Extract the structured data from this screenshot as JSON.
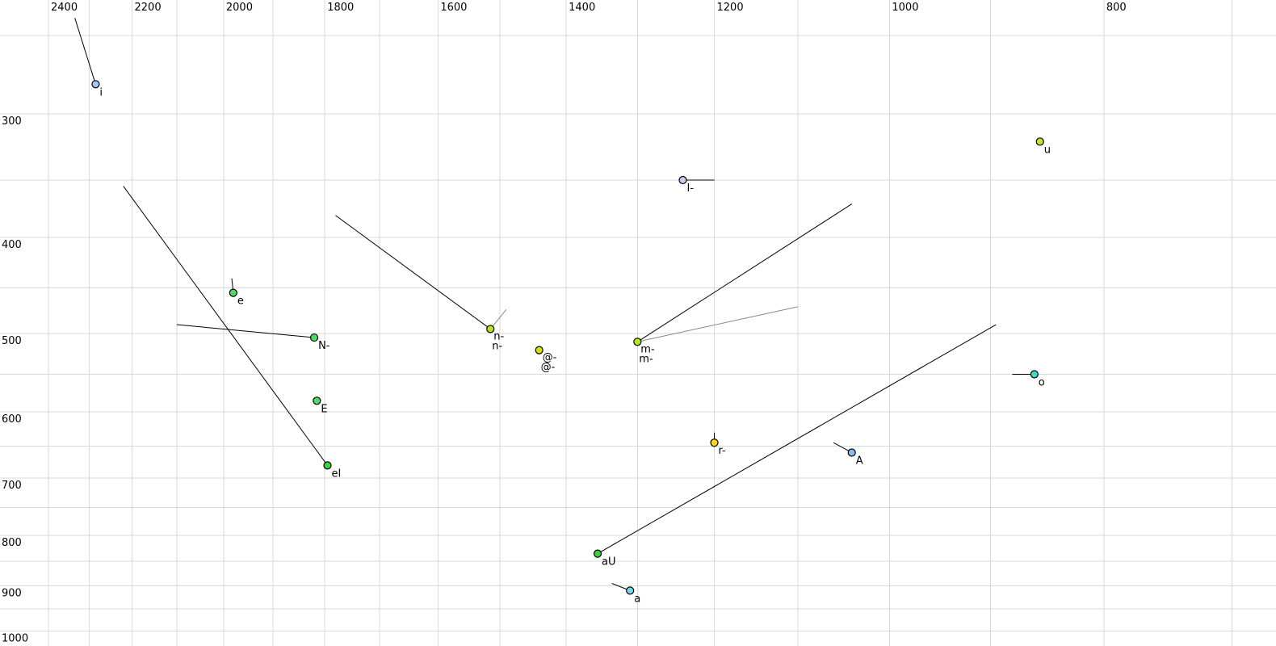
{
  "chart_data": {
    "type": "scatter",
    "title": "",
    "layout_hints": {
      "grid": "on",
      "legend": "none",
      "x_axis_position": "top",
      "y_axis_position": "left",
      "marker": "small circle with black outline",
      "tails": "line segments from each point showing formant movement"
    },
    "x_axis": {
      "unit": "Hz",
      "scale": "log",
      "reversed": true,
      "labeled_ticks": [
        2400,
        2200,
        2000,
        1800,
        1600,
        1400,
        1200,
        1000,
        800
      ],
      "gridline_step_hz": 100,
      "gridline_min_hz": 700,
      "gridline_max_hz": 2400
    },
    "y_axis": {
      "unit": "Hz",
      "scale": "log",
      "increases_downward": true,
      "labeled_ticks": [
        300,
        400,
        500,
        600,
        700,
        800,
        900,
        1000
      ],
      "gridline_step_hz": 50,
      "gridline_min_hz": 250,
      "gridline_max_hz": 1000
    },
    "grid_color": "#d9d9d9",
    "gray_label_color": "#8b90ae",
    "points": [
      {
        "name": "i",
        "f2": 2285,
        "f1": 280,
        "fill": "#a3c7ef",
        "labels": [
          {
            "text": "i",
            "color": "#000000"
          }
        ],
        "tails": [
          {
            "f2": 2335,
            "f1": 240,
            "color": "#000000"
          }
        ]
      },
      {
        "name": "u",
        "f2": 855,
        "f1": 320,
        "fill": "#c2e42c",
        "labels": [
          {
            "text": "u",
            "color": "#000000"
          }
        ],
        "tails": []
      },
      {
        "name": "I-",
        "f2": 1240,
        "f1": 350,
        "fill": "#c9c9ef",
        "labels": [
          {
            "text": "I-",
            "color": "#000000"
          }
        ],
        "tails": [
          {
            "f2": 1200,
            "f1": 350,
            "color": "#000000"
          }
        ]
      },
      {
        "name": "e",
        "f2": 1980,
        "f1": 455,
        "fill": "#4fdc64",
        "labels": [
          {
            "text": "e",
            "color": "#000000"
          }
        ],
        "tails": [
          {
            "f2": 1983,
            "f1": 440,
            "color": "#000000"
          }
        ]
      },
      {
        "name": "N-",
        "f2": 1820,
        "f1": 505,
        "fill": "#4fdc64",
        "labels": [
          {
            "text": "N-",
            "color": "#000000"
          }
        ],
        "tails": [
          {
            "f2": 2100,
            "f1": 490,
            "color": "#000000"
          }
        ]
      },
      {
        "name": "n-",
        "f2": 1515,
        "f1": 495,
        "fill": "#b4e51f",
        "labels": [
          {
            "text": "n-",
            "color": "#8b90ae"
          },
          {
            "text": "n-",
            "color": "#000000"
          }
        ],
        "tails": [
          {
            "f2": 1780,
            "f1": 380,
            "color": "#000000"
          },
          {
            "f2": 1490,
            "f1": 473,
            "color": "#888888"
          }
        ]
      },
      {
        "name": "@-",
        "f2": 1440,
        "f1": 520,
        "fill": "#d6e300",
        "labels": [
          {
            "text": "@-",
            "color": "#8b90ae"
          },
          {
            "text": "@-",
            "color": "#000000"
          }
        ],
        "tails": []
      },
      {
        "name": "m-",
        "f2": 1300,
        "f1": 510,
        "fill": "#b4e51f",
        "labels": [
          {
            "text": "m-",
            "color": "#8b90ae"
          },
          {
            "text": "m-",
            "color": "#000000"
          }
        ],
        "tails": [
          {
            "f2": 1040,
            "f1": 370,
            "color": "#000000"
          },
          {
            "f2": 1100,
            "f1": 470,
            "color": "#888888"
          }
        ]
      },
      {
        "name": "E",
        "f2": 1815,
        "f1": 585,
        "fill": "#4fdc64",
        "labels": [
          {
            "text": "E",
            "color": "#000000"
          }
        ],
        "tails": []
      },
      {
        "name": "eI",
        "f2": 1795,
        "f1": 680,
        "fill": "#3ed23e",
        "labels": [
          {
            "text": "eI",
            "color": "#000000"
          }
        ],
        "tails": [
          {
            "f2": 2220,
            "f1": 355,
            "color": "#000000"
          }
        ]
      },
      {
        "name": "r-",
        "f2": 1200,
        "f1": 645,
        "fill": "#ffd800",
        "labels": [
          {
            "text": "r-",
            "color": "#000000"
          }
        ],
        "tails": [
          {
            "f2": 1200,
            "f1": 630,
            "color": "#000000"
          }
        ]
      },
      {
        "name": "A",
        "f2": 1040,
        "f1": 660,
        "fill": "#8cbbea",
        "labels": [
          {
            "text": "A",
            "color": "#000000"
          }
        ],
        "tails": [
          {
            "f2": 1060,
            "f1": 645,
            "color": "#000000"
          }
        ]
      },
      {
        "name": "o",
        "f2": 860,
        "f1": 550,
        "fill": "#3ed9c8",
        "labels": [
          {
            "text": "o",
            "color": "#000000"
          }
        ],
        "tails": [
          {
            "f2": 880,
            "f1": 550,
            "color": "#000000"
          }
        ]
      },
      {
        "name": "aU",
        "f2": 1355,
        "f1": 835,
        "fill": "#3ed23e",
        "labels": [
          {
            "text": "aU",
            "color": "#000000"
          }
        ],
        "tails": [
          {
            "f2": 895,
            "f1": 490,
            "color": "#000000"
          }
        ]
      },
      {
        "name": "a",
        "f2": 1310,
        "f1": 910,
        "fill": "#74d8e8",
        "labels": [
          {
            "text": "a",
            "color": "#000000"
          }
        ],
        "tails": [
          {
            "f2": 1335,
            "f1": 895,
            "color": "#000000"
          }
        ]
      }
    ]
  }
}
